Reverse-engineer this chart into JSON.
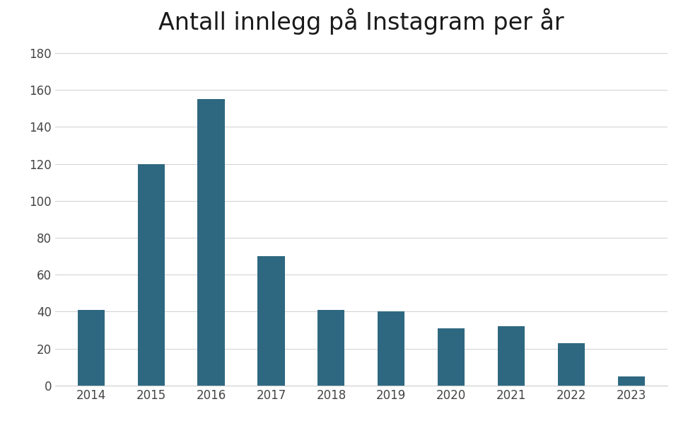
{
  "title": "Antall innlegg på Instagram per år",
  "years": [
    "2014",
    "2015",
    "2016",
    "2017",
    "2018",
    "2019",
    "2020",
    "2021",
    "2022",
    "2023"
  ],
  "values": [
    41,
    120,
    155,
    70,
    41,
    40,
    31,
    32,
    23,
    5
  ],
  "bar_color": "#2e6880",
  "background_color": "#ffffff",
  "ylim": [
    0,
    185
  ],
  "yticks": [
    0,
    20,
    40,
    60,
    80,
    100,
    120,
    140,
    160,
    180
  ],
  "title_fontsize": 24,
  "tick_fontsize": 12,
  "grid_color": "#d0d0d0",
  "bar_width": 0.45
}
